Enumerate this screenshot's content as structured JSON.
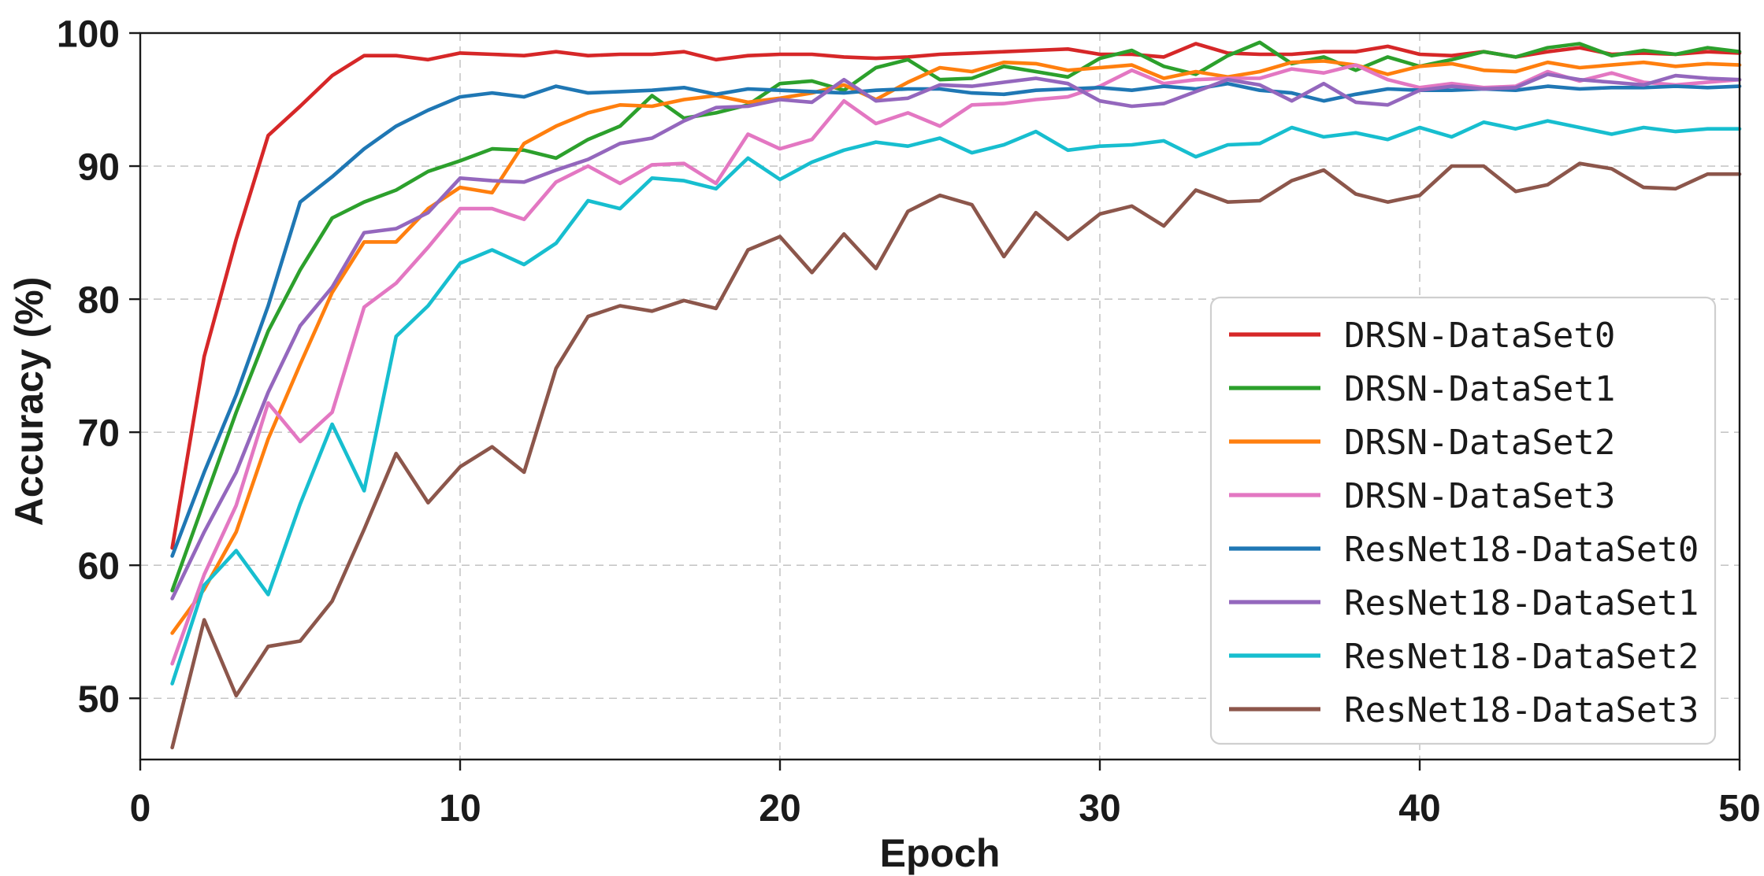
{
  "chart_data": {
    "type": "line",
    "title": "",
    "xlabel": "Epoch",
    "ylabel": "Accuracy (%)",
    "xlim": [
      0,
      50
    ],
    "ylim": [
      45.4,
      100
    ],
    "x_ticks": [
      0,
      10,
      20,
      30,
      40,
      50
    ],
    "y_ticks": [
      50,
      60,
      70,
      80,
      90,
      100
    ],
    "grid": "dashed",
    "grid_color": "#c6c6c6",
    "spine_color": "#1a1a1a",
    "text_color": "#1a1a1a",
    "legend_position": "lower right",
    "legend_border_color": "#cfcfcf",
    "legend_background": "#ffffff",
    "x": [
      1,
      2,
      3,
      4,
      5,
      6,
      7,
      8,
      9,
      10,
      11,
      12,
      13,
      14,
      15,
      16,
      17,
      18,
      19,
      20,
      21,
      22,
      23,
      24,
      25,
      26,
      27,
      28,
      29,
      30,
      31,
      32,
      33,
      34,
      35,
      36,
      37,
      38,
      39,
      40,
      41,
      42,
      43,
      44,
      45,
      46,
      47,
      48,
      49,
      50
    ],
    "series": [
      {
        "name": "DRSN-DataSet0",
        "color": "#d62728",
        "values": [
          61.3,
          75.7,
          84.5,
          92.3,
          94.5,
          96.8,
          98.3,
          98.3,
          98.0,
          98.5,
          98.4,
          98.3,
          98.6,
          98.3,
          98.4,
          98.4,
          98.6,
          98.0,
          98.3,
          98.4,
          98.4,
          98.2,
          98.1,
          98.2,
          98.4,
          98.5,
          98.6,
          98.7,
          98.8,
          98.4,
          98.4,
          98.2,
          99.2,
          98.5,
          98.4,
          98.4,
          98.6,
          98.6,
          99.0,
          98.4,
          98.3,
          98.6,
          98.2,
          98.6,
          98.9,
          98.4,
          98.5,
          98.4,
          98.6,
          98.5
        ]
      },
      {
        "name": "DRSN-DataSet1",
        "color": "#2ca02c",
        "values": [
          58.1,
          64.8,
          71.5,
          77.6,
          82.2,
          86.1,
          87.3,
          88.2,
          89.6,
          90.4,
          91.3,
          91.2,
          90.6,
          92.0,
          93.0,
          95.3,
          93.6,
          94.0,
          94.6,
          96.2,
          96.4,
          95.7,
          97.4,
          98.0,
          96.5,
          96.6,
          97.5,
          97.1,
          96.7,
          98.1,
          98.7,
          97.5,
          96.9,
          98.3,
          99.3,
          97.7,
          98.2,
          97.2,
          98.2,
          97.5,
          98.0,
          98.6,
          98.2,
          98.9,
          99.2,
          98.3,
          98.7,
          98.4,
          98.9,
          98.6
        ]
      },
      {
        "name": "DRSN-DataSet2",
        "color": "#ff7f0e",
        "values": [
          54.9,
          58.2,
          62.5,
          69.5,
          75.1,
          80.5,
          84.3,
          84.3,
          86.8,
          88.4,
          88.0,
          91.7,
          93.0,
          94.0,
          94.6,
          94.5,
          95.0,
          95.3,
          94.8,
          95.1,
          95.5,
          96.1,
          95.0,
          96.3,
          97.4,
          97.1,
          97.8,
          97.7,
          97.2,
          97.4,
          97.6,
          96.6,
          97.1,
          96.7,
          97.1,
          97.8,
          97.9,
          97.6,
          96.9,
          97.5,
          97.7,
          97.2,
          97.1,
          97.8,
          97.4,
          97.6,
          97.8,
          97.5,
          97.7,
          97.6
        ]
      },
      {
        "name": "DRSN-DataSet3",
        "color": "#e377c2",
        "values": [
          52.6,
          59.3,
          64.5,
          72.2,
          69.3,
          71.5,
          79.4,
          81.2,
          83.9,
          86.8,
          86.8,
          86.0,
          88.8,
          90.0,
          88.7,
          90.1,
          90.2,
          88.7,
          92.4,
          91.3,
          92.0,
          94.9,
          93.2,
          94.0,
          93.0,
          94.6,
          94.7,
          95.0,
          95.2,
          96.0,
          97.2,
          96.2,
          96.5,
          96.6,
          96.6,
          97.3,
          97.0,
          97.6,
          96.5,
          95.9,
          96.2,
          95.9,
          96.0,
          97.1,
          96.4,
          97.0,
          96.3,
          96.1,
          96.3,
          96.5
        ]
      },
      {
        "name": "ResNet18-DataSet0",
        "color": "#1f77b4",
        "values": [
          60.7,
          67.0,
          72.8,
          79.5,
          87.3,
          89.2,
          91.3,
          93.0,
          94.2,
          95.2,
          95.5,
          95.2,
          96.0,
          95.5,
          95.6,
          95.7,
          95.9,
          95.4,
          95.8,
          95.7,
          95.6,
          95.5,
          95.7,
          95.8,
          95.8,
          95.5,
          95.4,
          95.7,
          95.8,
          95.9,
          95.7,
          96.0,
          95.8,
          96.2,
          95.7,
          95.5,
          94.9,
          95.4,
          95.8,
          95.7,
          95.7,
          95.8,
          95.7,
          96.0,
          95.8,
          95.9,
          95.9,
          96.0,
          95.9,
          96.0
        ]
      },
      {
        "name": "ResNet18-DataSet1",
        "color": "#9467bd",
        "values": [
          57.5,
          62.5,
          67.0,
          73.0,
          78.0,
          80.9,
          85.0,
          85.3,
          86.5,
          89.1,
          88.9,
          88.8,
          89.7,
          90.5,
          91.7,
          92.1,
          93.4,
          94.4,
          94.5,
          95.0,
          94.8,
          96.5,
          94.9,
          95.1,
          96.1,
          96.0,
          96.3,
          96.6,
          96.2,
          94.9,
          94.5,
          94.7,
          95.6,
          96.5,
          96.1,
          94.9,
          96.2,
          94.8,
          94.6,
          95.7,
          96.0,
          95.8,
          95.9,
          96.9,
          96.5,
          96.3,
          96.1,
          96.8,
          96.6,
          96.5
        ]
      },
      {
        "name": "ResNet18-DataSet2",
        "color": "#17becf",
        "values": [
          51.1,
          58.5,
          61.1,
          57.8,
          64.6,
          70.6,
          65.6,
          77.2,
          79.5,
          82.7,
          83.7,
          82.6,
          84.2,
          87.4,
          86.8,
          89.1,
          88.9,
          88.3,
          90.6,
          89.0,
          90.3,
          91.2,
          91.8,
          91.5,
          92.1,
          91.0,
          91.6,
          92.6,
          91.2,
          91.5,
          91.6,
          91.9,
          90.7,
          91.6,
          91.7,
          92.9,
          92.2,
          92.5,
          92.0,
          92.9,
          92.2,
          93.3,
          92.8,
          93.4,
          92.9,
          92.4,
          92.9,
          92.6,
          92.8,
          92.8
        ]
      },
      {
        "name": "ResNet18-DataSet3",
        "color": "#8c564b",
        "values": [
          46.3,
          55.9,
          50.2,
          53.9,
          54.3,
          57.3,
          62.7,
          68.4,
          64.7,
          67.4,
          68.9,
          67.0,
          74.8,
          78.7,
          79.5,
          79.1,
          79.9,
          79.3,
          83.7,
          84.7,
          82.0,
          84.9,
          82.3,
          86.6,
          87.8,
          87.1,
          83.2,
          86.5,
          84.5,
          86.4,
          87.0,
          85.5,
          88.2,
          87.3,
          87.4,
          88.9,
          89.7,
          87.9,
          87.3,
          87.8,
          90.0,
          90.0,
          88.1,
          88.6,
          90.2,
          89.8,
          88.4,
          88.3,
          89.4,
          89.4
        ]
      }
    ]
  }
}
